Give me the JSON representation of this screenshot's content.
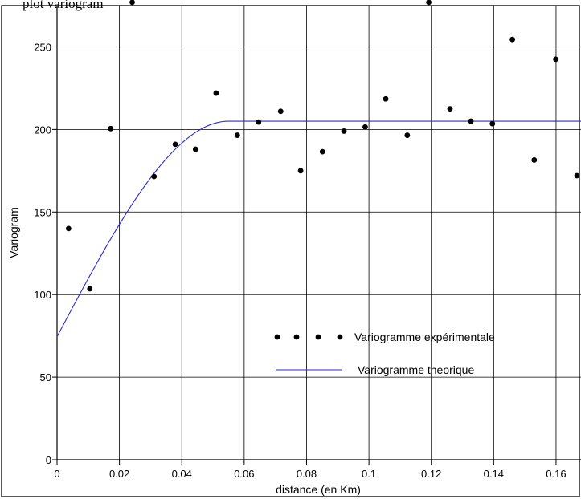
{
  "top_text": "plot variogram",
  "chart_data": {
    "type": "scatter",
    "xlabel": "distance (en Km)",
    "ylabel": "Variogram",
    "xlim": [
      0,
      0.168
    ],
    "ylim": [
      0,
      275
    ],
    "x_ticks": [
      0,
      0.02,
      0.04,
      0.06,
      0.08,
      0.1,
      0.12,
      0.14,
      0.16
    ],
    "x_tick_labels": [
      "0",
      "0.02",
      "0.04",
      "0.06",
      "0.08",
      "0.1",
      "0.12",
      "0.14",
      "0.16"
    ],
    "y_ticks": [
      0,
      50,
      100,
      150,
      200,
      250
    ],
    "y_tick_labels": [
      "0",
      "50",
      "100",
      "150",
      "200",
      "250"
    ],
    "grid": true,
    "legend_position": "lower-right",
    "series": [
      {
        "name": "Variogramme expérimentale",
        "kind": "scatter",
        "color": "#000000",
        "x": [
          0.0037,
          0.0105,
          0.0172,
          0.0241,
          0.0311,
          0.0379,
          0.0444,
          0.051,
          0.0578,
          0.0646,
          0.0717,
          0.0781,
          0.0851,
          0.092,
          0.0988,
          0.1054,
          0.1123,
          0.1192,
          0.126,
          0.1327,
          0.1396,
          0.146,
          0.153,
          0.1599,
          0.1667
        ],
        "y": [
          140,
          103.5,
          200.5,
          277,
          171.5,
          191,
          188,
          222,
          196.5,
          204.5,
          211,
          175,
          186.5,
          199,
          201.5,
          218.5,
          196.5,
          277,
          212.5,
          205,
          203.5,
          254.5,
          181.5,
          242.5,
          172
        ]
      },
      {
        "name": "Variogramme theorique",
        "kind": "line",
        "color": "#2a2ad8",
        "model": "spherical",
        "nugget": 74.5,
        "sill": 205,
        "range": 0.055
      }
    ]
  }
}
